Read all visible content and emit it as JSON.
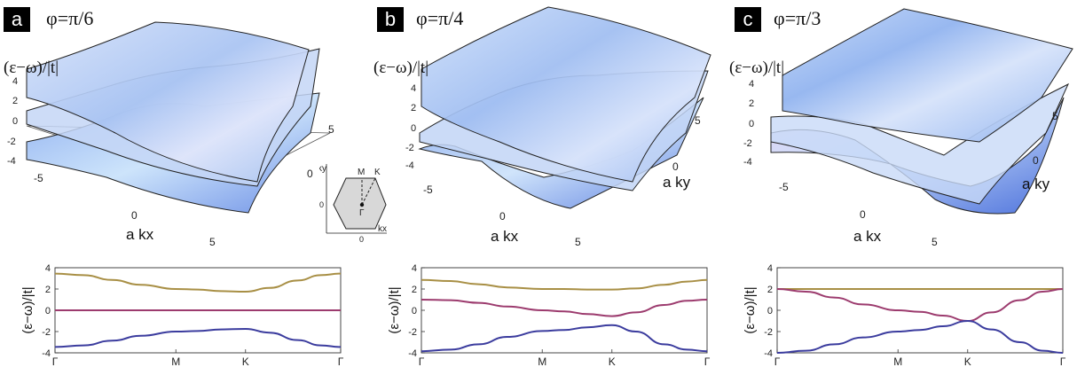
{
  "panels": [
    {
      "letter": "a",
      "phi": "φ=π/6"
    },
    {
      "letter": "b",
      "phi": "φ=π/4"
    },
    {
      "letter": "c",
      "phi": "φ=π/3"
    }
  ],
  "surface_plot": {
    "z_label": "(ε−ω)/|t|",
    "x_label": "a kx",
    "y_label": "a ky",
    "z_ticks": [
      "4",
      "2",
      "0",
      "-2",
      "-4"
    ],
    "xy_ticks": [
      "-5",
      "0",
      "5"
    ]
  },
  "brillouin_inset": {
    "ky_label": "ky",
    "kx_label": "kx",
    "zero_x": "0",
    "zero_y": "0",
    "points": [
      "M",
      "K",
      "Γ"
    ]
  },
  "chart_data": [
    {
      "type": "line",
      "title": "φ=π/6",
      "ylabel": "(ε−ω)/|t|",
      "ylim": [
        -4,
        4
      ],
      "yticks": [
        4,
        2,
        0,
        -2,
        -4
      ],
      "xticks": [
        {
          "label": "Γ",
          "x": 0
        },
        {
          "label": "M",
          "x": 0.423
        },
        {
          "label": "K",
          "x": 0.667
        },
        {
          "label": "Γ",
          "x": 1.0
        }
      ],
      "x": [
        0,
        0.1,
        0.2,
        0.3,
        0.423,
        0.5,
        0.58,
        0.667,
        0.75,
        0.85,
        0.93,
        1.0
      ],
      "series": [
        {
          "color": "#a88f45",
          "values": [
            3.45,
            3.3,
            2.85,
            2.4,
            2.0,
            1.95,
            1.8,
            1.75,
            2.1,
            2.8,
            3.3,
            3.45
          ]
        },
        {
          "color": "#9c3b6e",
          "values": [
            0,
            0,
            0,
            0,
            0,
            0,
            0,
            0,
            0,
            0,
            0,
            0
          ]
        },
        {
          "color": "#3b3c9e",
          "values": [
            -3.45,
            -3.3,
            -2.85,
            -2.4,
            -2.0,
            -1.95,
            -1.8,
            -1.75,
            -2.1,
            -2.8,
            -3.3,
            -3.45
          ]
        }
      ]
    },
    {
      "type": "line",
      "title": "φ=π/4",
      "ylabel": "(ε−ω)/|t|",
      "ylim": [
        -4,
        4
      ],
      "yticks": [
        4,
        2,
        0,
        -2,
        -4
      ],
      "xticks": [
        {
          "label": "Γ",
          "x": 0
        },
        {
          "label": "M",
          "x": 0.423
        },
        {
          "label": "K",
          "x": 0.667
        },
        {
          "label": "Γ",
          "x": 1.0
        }
      ],
      "x": [
        0,
        0.1,
        0.2,
        0.3,
        0.423,
        0.5,
        0.58,
        0.667,
        0.75,
        0.85,
        0.93,
        1.0
      ],
      "series": [
        {
          "color": "#a88f45",
          "values": [
            2.85,
            2.75,
            2.45,
            2.15,
            2.0,
            2.0,
            1.95,
            1.95,
            2.05,
            2.4,
            2.7,
            2.85
          ]
        },
        {
          "color": "#9c3b6e",
          "values": [
            1.0,
            0.95,
            0.7,
            0.35,
            0.0,
            -0.1,
            -0.35,
            -0.55,
            -0.2,
            0.5,
            0.9,
            1.0
          ]
        },
        {
          "color": "#3b3c9e",
          "values": [
            -3.85,
            -3.7,
            -3.2,
            -2.5,
            -1.95,
            -1.85,
            -1.6,
            -1.4,
            -2.0,
            -3.2,
            -3.7,
            -3.85
          ]
        }
      ]
    },
    {
      "type": "line",
      "title": "φ=π/3",
      "ylabel": "(ε−ω)/|t|",
      "ylim": [
        -4,
        4
      ],
      "yticks": [
        4,
        2,
        0,
        -2,
        -4
      ],
      "xticks": [
        {
          "label": "Γ",
          "x": 0
        },
        {
          "label": "M",
          "x": 0.423
        },
        {
          "label": "K",
          "x": 0.667
        },
        {
          "label": "Γ",
          "x": 1.0
        }
      ],
      "x": [
        0,
        0.1,
        0.2,
        0.3,
        0.423,
        0.5,
        0.58,
        0.667,
        0.75,
        0.85,
        0.93,
        1.0
      ],
      "series": [
        {
          "color": "#a88f45",
          "values": [
            2.0,
            2.0,
            2.0,
            2.0,
            2.0,
            2.0,
            2.0,
            2.0,
            2.0,
            2.0,
            2.0,
            2.0
          ]
        },
        {
          "color": "#9c3b6e",
          "values": [
            2.0,
            1.75,
            1.2,
            0.55,
            0.0,
            -0.15,
            -0.5,
            -1.0,
            -0.2,
            0.95,
            1.75,
            2.0
          ]
        },
        {
          "color": "#3b3c9e",
          "values": [
            -4.0,
            -3.8,
            -3.2,
            -2.55,
            -2.0,
            -1.85,
            -1.5,
            -1.0,
            -1.8,
            -3.0,
            -3.8,
            -4.0
          ]
        }
      ]
    }
  ]
}
